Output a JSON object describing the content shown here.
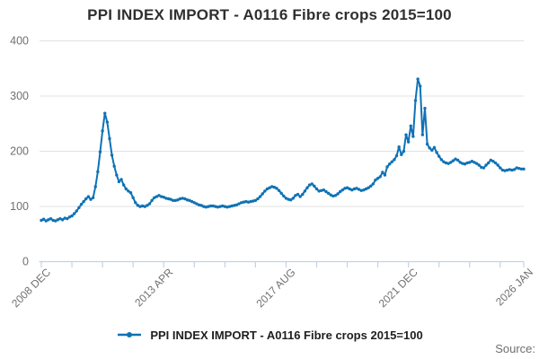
{
  "header": {
    "title": "PPI INDEX IMPORT - A0116 Fibre crops 2015=100"
  },
  "legend": {
    "label": "PPI INDEX IMPORT - A0116 Fibre crops 2015=100"
  },
  "footer": {
    "source_label": "Source:"
  },
  "colors": {
    "line": "#0f72b5",
    "grid": "#e2e2e2",
    "axis": "#c7d1e3",
    "tick_label": "#707070",
    "title_text": "#2f2f2f",
    "legend_text": "#202020",
    "source_text": "#6f6f6f"
  },
  "chart_data": {
    "type": "line",
    "title": "PPI INDEX IMPORT - A0116 Fibre crops 2015=100",
    "frequency": "monthly",
    "x_start": "2008 DEC",
    "x_end": "2026 JAN",
    "ylim": [
      0,
      400
    ],
    "y_ticks": [
      0,
      100,
      200,
      300,
      400
    ],
    "x_major_ticks": [
      {
        "label": "2008 DEC",
        "month_index": 0
      },
      {
        "label": "2013 APR",
        "month_index": 52
      },
      {
        "label": "2017 AUG",
        "month_index": 104
      },
      {
        "label": "2021 DEC",
        "month_index": 156
      },
      {
        "label": "2026 JAN",
        "month_index": 205
      }
    ],
    "x_minor_tick_interval_months": 13,
    "grid": "horizontal",
    "legend_position": "bottom",
    "marker": "dot",
    "series": [
      {
        "name": "PPI INDEX IMPORT - A0116 Fibre crops 2015=100",
        "values": [
          74,
          76,
          73,
          75,
          77,
          74,
          73,
          75,
          77,
          75,
          78,
          77,
          80,
          82,
          86,
          91,
          97,
          103,
          108,
          113,
          117,
          112,
          115,
          135,
          162,
          198,
          236,
          268,
          252,
          222,
          192,
          172,
          156,
          144,
          148,
          138,
          131,
          127,
          124,
          115,
          106,
          101,
          99,
          100,
          99,
          101,
          104,
          110,
          115,
          117,
          119,
          117,
          116,
          114,
          113,
          112,
          110,
          110,
          111,
          113,
          114,
          113,
          111,
          110,
          108,
          106,
          104,
          102,
          101,
          99,
          98,
          99,
          100,
          100,
          99,
          98,
          99,
          100,
          99,
          98,
          99,
          100,
          101,
          102,
          104,
          106,
          107,
          108,
          107,
          108,
          109,
          110,
          113,
          117,
          122,
          127,
          131,
          133,
          135,
          134,
          132,
          128,
          123,
          118,
          114,
          112,
          111,
          114,
          119,
          121,
          117,
          121,
          127,
          133,
          138,
          140,
          136,
          131,
          127,
          128,
          129,
          126,
          123,
          120,
          118,
          119,
          122,
          126,
          129,
          132,
          133,
          131,
          129,
          131,
          132,
          130,
          128,
          129,
          131,
          133,
          136,
          140,
          147,
          150,
          153,
          161,
          156,
          171,
          176,
          180,
          184,
          191,
          207,
          193,
          199,
          229,
          216,
          245,
          226,
          291,
          330,
          317,
          229,
          277,
          212,
          205,
          201,
          206,
          197,
          190,
          184,
          180,
          178,
          177,
          179,
          182,
          185,
          183,
          179,
          177,
          176,
          178,
          179,
          181,
          179,
          177,
          174,
          170,
          169,
          174,
          178,
          183,
          181,
          178,
          174,
          169,
          165,
          164,
          165,
          166,
          165,
          166,
          169,
          168,
          167,
          167
        ]
      }
    ]
  }
}
